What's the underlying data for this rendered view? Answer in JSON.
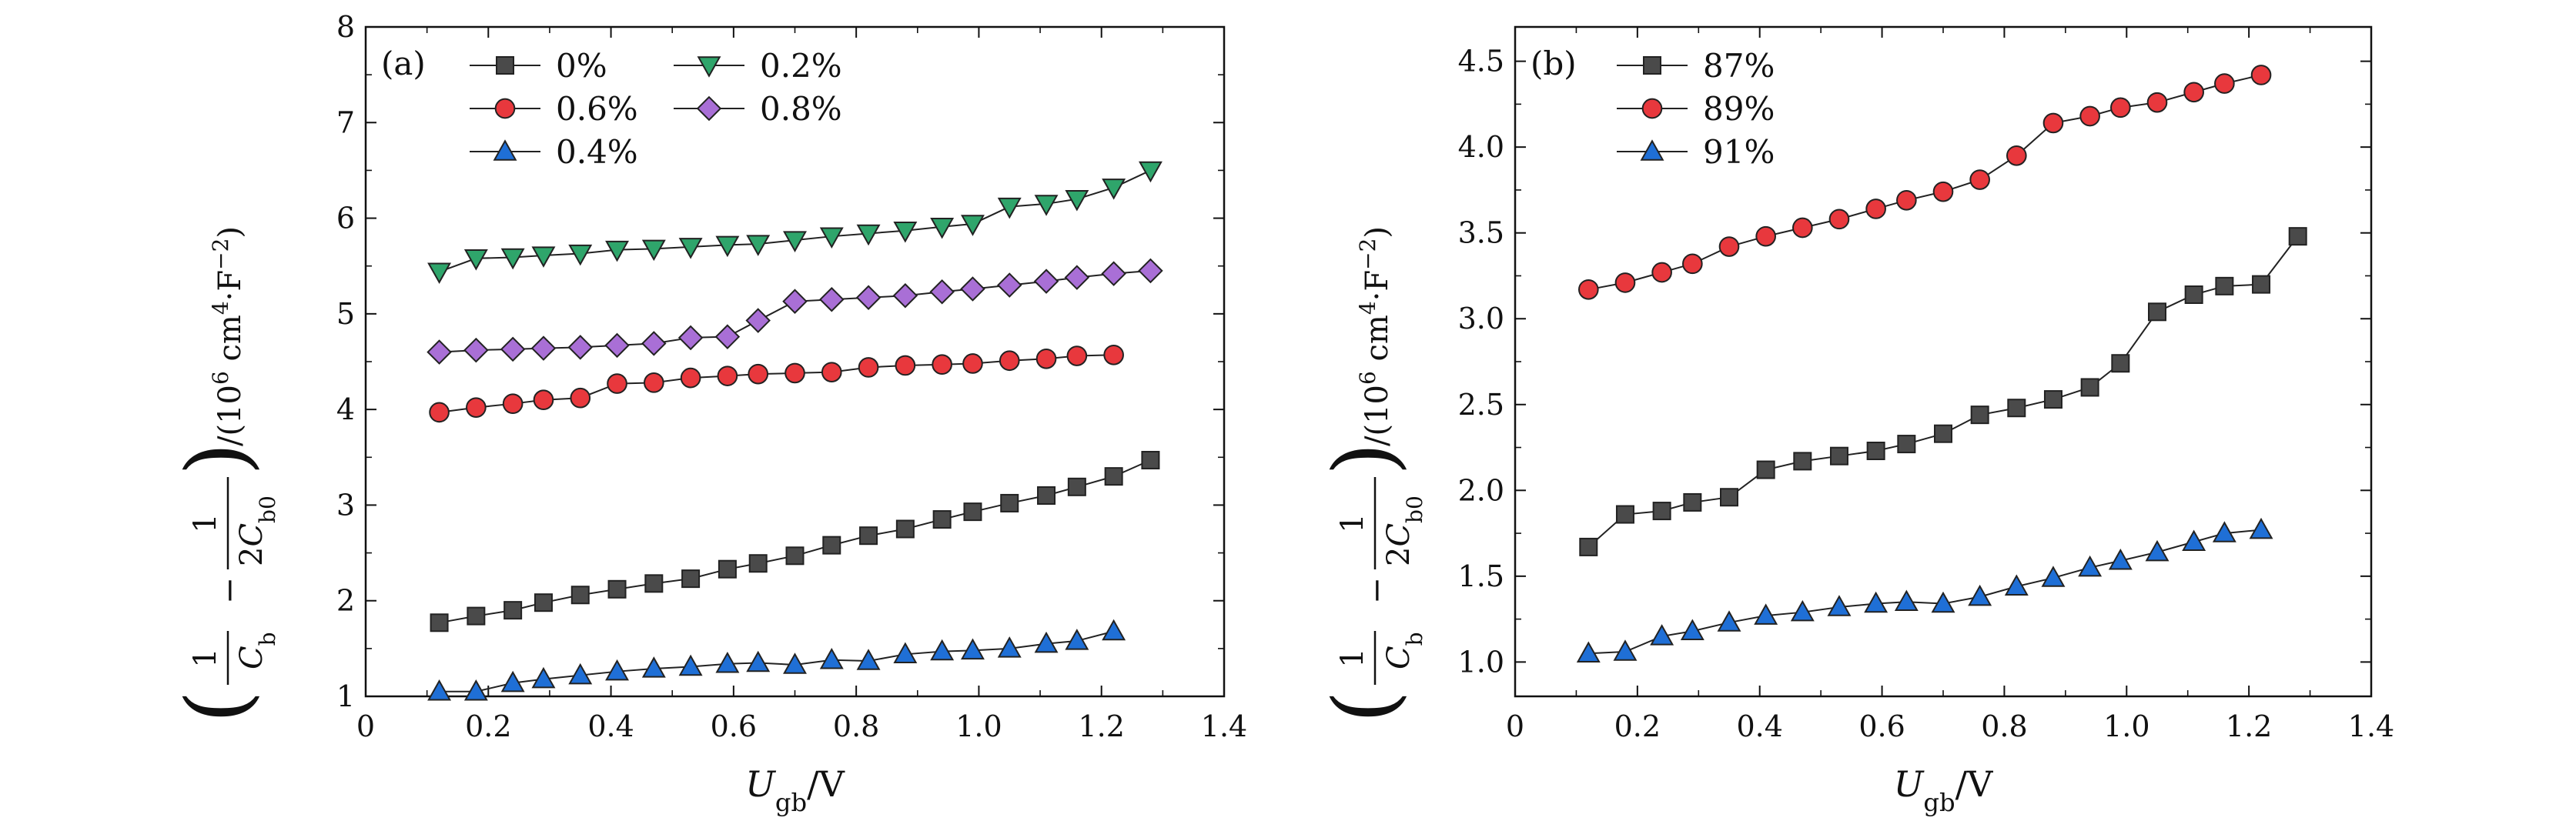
{
  "chart_data": [
    {
      "panel_label": "(a)",
      "type": "line",
      "xlabel": "U_gb/V",
      "ylabel": "(1/C_b − 1/2C_b0)/(10^6 cm^4·F^−2)",
      "xlim": [
        0,
        1.4
      ],
      "ylim": [
        1,
        8
      ],
      "xticks": [
        "0",
        "0.2",
        "0.4",
        "0.6",
        "0.8",
        "1.0",
        "1.2",
        "1.4"
      ],
      "yticks": [
        "1",
        "2",
        "3",
        "4",
        "5",
        "6",
        "7",
        "8"
      ],
      "legend_placement": "top-left",
      "grid": false,
      "x": [
        0.12,
        0.18,
        0.24,
        0.29,
        0.35,
        0.41,
        0.47,
        0.53,
        0.59,
        0.64,
        0.7,
        0.76,
        0.82,
        0.88,
        0.94,
        0.99,
        1.05,
        1.11,
        1.16,
        1.22,
        1.28
      ],
      "series": [
        {
          "name": "0%",
          "marker": "square",
          "color": "#4a4a4a",
          "values": [
            1.77,
            1.84,
            1.9,
            1.98,
            2.06,
            2.12,
            2.18,
            2.23,
            2.33,
            2.39,
            2.47,
            2.58,
            2.68,
            2.75,
            2.85,
            2.93,
            3.02,
            3.1,
            3.19,
            3.3,
            3.47
          ]
        },
        {
          "name": "0.6%",
          "marker": "circle",
          "color": "#e8383d",
          "values": [
            3.97,
            4.02,
            4.06,
            4.1,
            4.12,
            4.27,
            4.28,
            4.33,
            4.35,
            4.37,
            4.38,
            4.39,
            4.44,
            4.46,
            4.47,
            4.48,
            4.51,
            4.53,
            4.56,
            4.57,
            null
          ]
        },
        {
          "name": "0.4%",
          "marker": "triangle-up",
          "color": "#1f6fd6",
          "values": [
            1.05,
            1.05,
            1.14,
            1.18,
            1.22,
            1.26,
            1.29,
            1.31,
            1.34,
            1.35,
            1.33,
            1.38,
            1.37,
            1.44,
            1.47,
            1.48,
            1.5,
            1.55,
            1.58,
            1.68,
            null
          ]
        },
        {
          "name": "0.2%",
          "marker": "triangle-down",
          "color": "#2fa56b",
          "values": [
            5.44,
            5.58,
            5.59,
            5.61,
            5.63,
            5.67,
            5.68,
            5.7,
            5.72,
            5.73,
            5.77,
            5.81,
            5.84,
            5.87,
            5.91,
            5.94,
            6.12,
            6.15,
            6.2,
            6.32,
            6.5
          ]
        },
        {
          "name": "0.8%",
          "marker": "diamond",
          "color": "#a96fd6",
          "values": [
            4.6,
            4.62,
            4.63,
            4.64,
            4.65,
            4.67,
            4.69,
            4.75,
            4.76,
            4.93,
            5.13,
            5.15,
            5.17,
            5.19,
            5.23,
            5.26,
            5.3,
            5.34,
            5.38,
            5.42,
            5.45
          ]
        }
      ]
    },
    {
      "panel_label": "(b)",
      "type": "line",
      "xlabel": "U_gb/V",
      "ylabel": "(1/C_b − 1/2C_b0)/(10^6 cm^4·F^−2)",
      "xlim": [
        0,
        1.4
      ],
      "ylim": [
        0.8,
        4.7
      ],
      "xticks": [
        "0",
        "0.2",
        "0.4",
        "0.6",
        "0.8",
        "1.0",
        "1.2",
        "1.4"
      ],
      "yticks": [
        "1.0",
        "1.5",
        "2.0",
        "2.5",
        "3.0",
        "3.5",
        "4.0",
        "4.5"
      ],
      "legend_placement": "top-left",
      "grid": false,
      "x": [
        0.12,
        0.18,
        0.24,
        0.29,
        0.35,
        0.41,
        0.47,
        0.53,
        0.59,
        0.64,
        0.7,
        0.76,
        0.82,
        0.88,
        0.94,
        0.99,
        1.05,
        1.11,
        1.16,
        1.22,
        1.28
      ],
      "series": [
        {
          "name": "87%",
          "marker": "square",
          "color": "#4a4a4a",
          "values": [
            1.67,
            1.86,
            1.88,
            1.93,
            1.96,
            2.12,
            2.17,
            2.2,
            2.23,
            2.27,
            2.33,
            2.44,
            2.48,
            2.53,
            2.6,
            2.74,
            3.04,
            3.14,
            3.19,
            3.2,
            3.48
          ]
        },
        {
          "name": "89%",
          "marker": "circle",
          "color": "#e8383d",
          "values": [
            3.17,
            3.21,
            3.27,
            3.32,
            3.42,
            3.48,
            3.53,
            3.58,
            3.64,
            3.69,
            3.74,
            3.81,
            3.95,
            4.14,
            4.18,
            4.23,
            4.26,
            4.32,
            4.37,
            4.42,
            null
          ]
        },
        {
          "name": "91%",
          "marker": "triangle-up",
          "color": "#1f6fd6",
          "values": [
            1.05,
            1.06,
            1.15,
            1.18,
            1.23,
            1.27,
            1.29,
            1.32,
            1.34,
            1.35,
            1.34,
            1.38,
            1.44,
            1.49,
            1.55,
            1.59,
            1.64,
            1.7,
            1.75,
            1.77,
            null
          ]
        }
      ]
    }
  ]
}
